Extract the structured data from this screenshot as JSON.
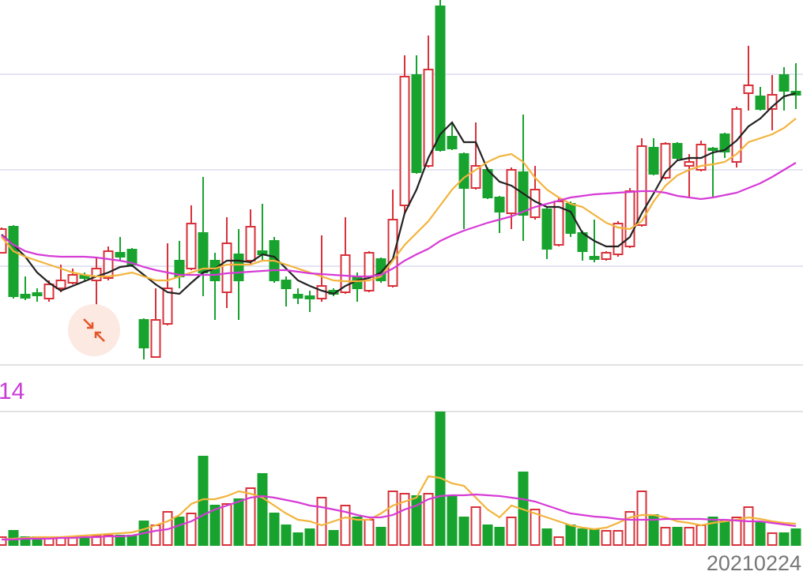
{
  "chart_data": [
    {
      "type": "candlestick",
      "up_color": "#d8313a",
      "down_color": "#18a32e",
      "ylim": [
        0,
        462
      ],
      "yticks": [
        125,
        247,
        368
      ],
      "grid": true,
      "open": [
        142,
        175,
        89,
        91,
        84,
        97,
        104,
        113,
        107,
        110,
        142,
        146,
        57,
        10,
        52,
        132,
        122,
        167,
        132,
        92,
        140,
        132,
        144,
        157,
        107,
        89,
        87,
        84,
        94,
        92,
        112,
        94,
        134,
        100,
        202,
        367,
        252,
        454,
        289,
        267,
        224,
        247,
        212,
        192,
        244,
        187,
        197,
        152,
        204,
        167,
        137,
        134,
        140,
        150,
        177,
        275,
        237,
        280,
        252,
        247,
        274,
        292,
        257,
        344,
        340,
        324,
        367,
        346
      ],
      "high": [
        174,
        177,
        112,
        97,
        107,
        127,
        122,
        117,
        137,
        150,
        162,
        148,
        59,
        97,
        154,
        157,
        202,
        238,
        142,
        187,
        172,
        197,
        204,
        162,
        112,
        97,
        94,
        164,
        97,
        187,
        117,
        144,
        136,
        222,
        392,
        392,
        417,
        462,
        307,
        269,
        307,
        250,
        214,
        250,
        317,
        252,
        200,
        212,
        207,
        170,
        184,
        144,
        182,
        224,
        287,
        287,
        282,
        282,
        267,
        284,
        276,
        294,
        327,
        404,
        352,
        367,
        377,
        382
      ],
      "low": [
        142,
        84,
        82,
        80,
        80,
        92,
        102,
        107,
        42,
        107,
        132,
        124,
        7,
        9,
        50,
        97,
        120,
        87,
        57,
        72,
        57,
        127,
        132,
        104,
        74,
        77,
        67,
        80,
        87,
        90,
        80,
        92,
        104,
        98,
        192,
        242,
        250,
        270,
        272,
        172,
        222,
        210,
        167,
        172,
        157,
        184,
        134,
        150,
        162,
        132,
        130,
        132,
        137,
        148,
        175,
        240,
        235,
        260,
        212,
        245,
        212,
        262,
        250,
        322,
        322,
        297,
        322,
        324
      ],
      "close": [
        172,
        87,
        85,
        88,
        102,
        107,
        114,
        110,
        122,
        144,
        137,
        127,
        22,
        57,
        97,
        112,
        179,
        117,
        107,
        154,
        107,
        175,
        140,
        107,
        97,
        85,
        84,
        100,
        90,
        139,
        97,
        142,
        107,
        184,
        365,
        244,
        374,
        272,
        274,
        224,
        252,
        212,
        194,
        247,
        190,
        222,
        147,
        207,
        167,
        144,
        134,
        142,
        179,
        220,
        277,
        242,
        280,
        262,
        257,
        279,
        272,
        270,
        324,
        354,
        324,
        342,
        347,
        342
      ],
      "lines": [
        {
          "color": "#222222",
          "values": [
            165,
            152,
            137,
            117,
            104,
            94,
            100,
            106,
            112,
            117,
            124,
            126,
            114,
            102,
            92,
            90,
            104,
            117,
            122,
            132,
            132,
            130,
            140,
            137,
            122,
            107,
            100,
            94,
            90,
            100,
            107,
            110,
            117,
            134,
            192,
            222,
            262,
            292,
            307,
            282,
            282,
            247,
            232,
            227,
            217,
            207,
            200,
            200,
            194,
            167,
            157,
            150,
            150,
            162,
            192,
            217,
            244,
            259,
            262,
            262,
            269,
            272,
            284,
            302,
            312,
            327,
            340,
            344
          ]
        },
        {
          "color": "#f2b43c",
          "values": [
            162,
            144,
            137,
            132,
            127,
            122,
            117,
            114,
            112,
            112,
            114,
            117,
            112,
            107,
            107,
            112,
            117,
            122,
            122,
            127,
            127,
            127,
            132,
            132,
            127,
            122,
            117,
            112,
            107,
            106,
            106,
            107,
            112,
            132,
            152,
            167,
            182,
            202,
            222,
            237,
            247,
            257,
            264,
            267,
            257,
            237,
            222,
            212,
            204,
            200,
            190,
            180,
            174,
            172,
            182,
            207,
            227,
            240,
            247,
            252,
            254,
            257,
            267,
            282,
            287,
            292,
            300,
            312
          ]
        },
        {
          "color": "#d63bd6",
          "values": [
            164,
            152,
            144,
            140,
            138,
            137,
            137,
            137,
            136,
            134,
            132,
            129,
            124,
            120,
            117,
            114,
            114,
            114,
            114,
            116,
            117,
            118,
            119,
            120,
            120,
            118,
            116,
            115,
            114,
            113,
            112,
            112,
            114,
            122,
            132,
            140,
            147,
            157,
            164,
            170,
            175,
            180,
            184,
            188,
            194,
            200,
            204,
            208,
            212,
            214,
            216,
            217,
            218,
            219,
            220,
            220,
            218,
            214,
            212,
            210,
            212,
            215,
            218,
            224,
            230,
            238,
            247,
            256
          ]
        }
      ]
    },
    {
      "type": "bar",
      "title": "14",
      "title_color": "#c83cd6",
      "ylim": [
        0,
        168
      ],
      "categories": [
        null,
        null,
        null,
        null,
        null,
        null,
        null,
        null,
        null,
        null,
        null,
        null,
        null,
        null,
        null,
        null,
        null,
        null,
        null,
        null,
        null,
        null,
        null,
        null,
        null,
        null,
        null,
        null,
        null,
        null,
        null,
        null,
        null,
        null,
        null,
        null,
        null,
        null,
        null,
        null,
        null,
        null,
        null,
        null,
        null,
        null,
        null,
        null,
        null,
        null,
        null,
        null,
        null,
        null,
        null,
        null,
        null,
        null,
        null,
        null,
        null,
        null,
        null,
        null,
        null,
        null,
        null,
        "20210224"
      ],
      "values": [
        10,
        18,
        10,
        10,
        10,
        10,
        10,
        10,
        12,
        12,
        12,
        12,
        30,
        25,
        42,
        35,
        40,
        112,
        50,
        52,
        58,
        72,
        90,
        40,
        25,
        15,
        20,
        60,
        18,
        50,
        35,
        32,
        22,
        68,
        65,
        62,
        65,
        168,
        62,
        35,
        48,
        25,
        22,
        35,
        92,
        45,
        20,
        10,
        25,
        20,
        20,
        18,
        18,
        42,
        68,
        38,
        22,
        22,
        22,
        25,
        35,
        30,
        35,
        48,
        28,
        15,
        15,
        20
      ],
      "lines": [
        {
          "color": "#f2b43c",
          "values": [
            7,
            8,
            9,
            10,
            10,
            10,
            11,
            12,
            13,
            14,
            15,
            16,
            20,
            25,
            30,
            38,
            52,
            58,
            58,
            62,
            68,
            65,
            60,
            50,
            40,
            32,
            30,
            25,
            30,
            35,
            32,
            32,
            40,
            50,
            55,
            60,
            87,
            85,
            78,
            75,
            60,
            45,
            35,
            50,
            45,
            40,
            35,
            30,
            25,
            22,
            20,
            22,
            28,
            35,
            38,
            38,
            35,
            30,
            28,
            25,
            28,
            30,
            32,
            35,
            33,
            30,
            28,
            27
          ]
        },
        {
          "color": "#d63bd6",
          "values": [
            7,
            7,
            8,
            8,
            8,
            9,
            9,
            10,
            10,
            11,
            11,
            12,
            15,
            18,
            20,
            25,
            30,
            38,
            45,
            50,
            55,
            60,
            62,
            60,
            57,
            54,
            50,
            48,
            45,
            42,
            38,
            35,
            35,
            38,
            45,
            50,
            58,
            62,
            63,
            63,
            64,
            63,
            62,
            60,
            58,
            55,
            50,
            45,
            40,
            38,
            36,
            35,
            33,
            32,
            32,
            32,
            33,
            33,
            33,
            33,
            32,
            32,
            31,
            30,
            30,
            28,
            26,
            24
          ]
        }
      ]
    }
  ]
}
